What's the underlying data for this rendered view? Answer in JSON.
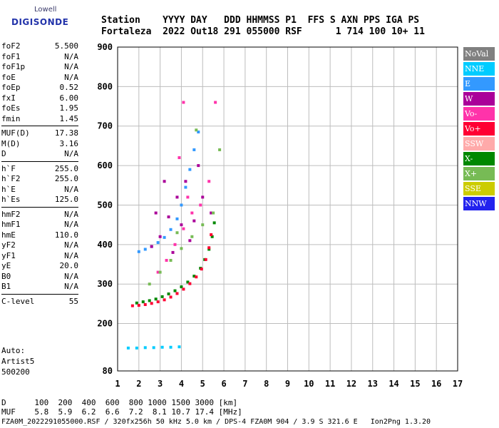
{
  "logo": {
    "line1": "Lowell",
    "line2": "DIGISONDE"
  },
  "header": {
    "row1": "Station    YYYY DAY   DDD HHMMSS P1  FFS S AXN PPS IGA PS",
    "row2": "Fortaleza  2022 Out18 291 055000 RSF      1 714 100 10+ 11"
  },
  "params": {
    "group1": [
      {
        "name": "foF2",
        "value": "5.500"
      },
      {
        "name": "foF1",
        "value": "N/A"
      },
      {
        "name": "foF1p",
        "value": "N/A"
      },
      {
        "name": "foE",
        "value": "N/A"
      },
      {
        "name": "foEp",
        "value": "0.52"
      },
      {
        "name": "fxI",
        "value": "6.00"
      },
      {
        "name": "foEs",
        "value": "1.95"
      },
      {
        "name": "fmin",
        "value": "1.45"
      }
    ],
    "group2": [
      {
        "name": "MUF(D)",
        "value": "17.38"
      },
      {
        "name": "M(D)",
        "value": "3.16"
      },
      {
        "name": "D",
        "value": "N/A"
      }
    ],
    "group3": [
      {
        "name": "h`F",
        "value": "255.0"
      },
      {
        "name": "h`F2",
        "value": "255.0"
      },
      {
        "name": "h`E",
        "value": "N/A"
      },
      {
        "name": "h`Es",
        "value": "125.0"
      }
    ],
    "group4": [
      {
        "name": "hmF2",
        "value": "N/A"
      },
      {
        "name": "hmF1",
        "value": "N/A"
      },
      {
        "name": "hmE",
        "value": "110.0"
      },
      {
        "name": "yF2",
        "value": "N/A"
      },
      {
        "name": "yF1",
        "value": "N/A"
      },
      {
        "name": "yE",
        "value": "20.0"
      },
      {
        "name": "B0",
        "value": "N/A"
      },
      {
        "name": "B1",
        "value": "N/A"
      }
    ],
    "group5": [
      {
        "name": "C-level",
        "value": "55"
      }
    ]
  },
  "auto": {
    "line1": "Auto:",
    "line2": "Artist5",
    "line3": "500200"
  },
  "legend": [
    {
      "label": "NoVal",
      "color": "#808080"
    },
    {
      "label": "NNE",
      "color": "#00ccff"
    },
    {
      "label": "E",
      "color": "#3399ff"
    },
    {
      "label": "W",
      "color": "#aa0099"
    },
    {
      "label": "Vo-",
      "color": "#ff33aa"
    },
    {
      "label": "Vo+",
      "color": "#ff0033"
    },
    {
      "label": "SSW",
      "color": "#ffaaaa"
    },
    {
      "label": "X-",
      "color": "#008800"
    },
    {
      "label": "X+",
      "color": "#77bb55"
    },
    {
      "label": "SSE",
      "color": "#cccc00"
    },
    {
      "label": "NNW",
      "color": "#2222ee"
    }
  ],
  "bottom": {
    "row1": "D      100  200  400  600  800 1000 1500 3000 [km]",
    "row2": "MUF    5.8  5.9  6.2  6.6  7.2  8.1 10.7 17.4 [MHz]",
    "row3": "FZA0M_2022291055000.RSF / 320fx256h 50 kHz 5.0 km / DPS-4 FZA0M 904 / 3.9 S 321.6 E   Ion2Png 1.3.20"
  },
  "chart_data": {
    "type": "scatter",
    "title": "",
    "xlabel": "",
    "ylabel": "",
    "xlim": [
      1,
      17
    ],
    "ylim": [
      80,
      900
    ],
    "xticks": [
      1,
      2,
      3,
      4,
      5,
      6,
      7,
      8,
      9,
      10,
      11,
      12,
      13,
      14,
      15,
      16,
      17
    ],
    "yticks": [
      80,
      200,
      300,
      400,
      500,
      600,
      700,
      800,
      900
    ],
    "grid": true,
    "series": [
      {
        "name": "X-",
        "color": "#008800",
        "points": [
          [
            1.9,
            252
          ],
          [
            2.2,
            255
          ],
          [
            2.5,
            258
          ],
          [
            2.8,
            262
          ],
          [
            3.1,
            268
          ],
          [
            3.4,
            275
          ],
          [
            3.7,
            283
          ],
          [
            4.0,
            293
          ],
          [
            4.3,
            305
          ],
          [
            4.6,
            320
          ],
          [
            4.9,
            340
          ],
          [
            5.1,
            362
          ],
          [
            5.3,
            388
          ],
          [
            5.45,
            420
          ],
          [
            5.55,
            455
          ]
        ]
      },
      {
        "name": "Vo+",
        "color": "#ff0033",
        "points": [
          [
            1.7,
            245
          ],
          [
            2.0,
            246
          ],
          [
            2.3,
            248
          ],
          [
            2.6,
            251
          ],
          [
            2.9,
            255
          ],
          [
            3.2,
            260
          ],
          [
            3.5,
            267
          ],
          [
            3.8,
            276
          ],
          [
            4.1,
            287
          ],
          [
            4.4,
            301
          ],
          [
            4.7,
            318
          ],
          [
            4.95,
            338
          ],
          [
            5.15,
            362
          ],
          [
            5.3,
            392
          ],
          [
            5.4,
            425
          ]
        ]
      },
      {
        "name": "E",
        "color": "#3399ff",
        "points": [
          [
            2.0,
            382
          ],
          [
            2.3,
            388
          ],
          [
            2.6,
            395
          ],
          [
            2.9,
            405
          ],
          [
            3.2,
            418
          ],
          [
            3.5,
            438
          ],
          [
            3.8,
            465
          ],
          [
            4.0,
            500
          ],
          [
            4.2,
            545
          ],
          [
            4.4,
            590
          ],
          [
            4.6,
            640
          ],
          [
            4.8,
            685
          ]
        ]
      },
      {
        "name": "NNE",
        "color": "#00ccff",
        "points": [
          [
            1.5,
            138
          ],
          [
            1.9,
            138
          ],
          [
            2.3,
            139
          ],
          [
            2.7,
            139
          ],
          [
            3.1,
            140
          ],
          [
            3.5,
            140
          ],
          [
            3.9,
            141
          ]
        ]
      },
      {
        "name": "W",
        "color": "#aa0099",
        "points": [
          [
            2.6,
            395
          ],
          [
            3.0,
            420
          ],
          [
            3.4,
            470
          ],
          [
            3.8,
            520
          ],
          [
            4.2,
            560
          ],
          [
            4.6,
            460
          ],
          [
            5.0,
            520
          ],
          [
            5.4,
            480
          ],
          [
            3.6,
            380
          ],
          [
            4.4,
            410
          ],
          [
            3.2,
            560
          ],
          [
            4.0,
            450
          ],
          [
            2.8,
            480
          ],
          [
            4.8,
            600
          ]
        ]
      },
      {
        "name": "Vo-",
        "color": "#ff33aa",
        "points": [
          [
            2.9,
            330
          ],
          [
            3.3,
            360
          ],
          [
            3.7,
            400
          ],
          [
            4.1,
            440
          ],
          [
            4.5,
            480
          ],
          [
            4.9,
            500
          ],
          [
            5.3,
            560
          ],
          [
            3.9,
            620
          ],
          [
            4.3,
            520
          ],
          [
            5.6,
            760
          ],
          [
            4.1,
            760
          ]
        ]
      },
      {
        "name": "X+",
        "color": "#77bb55",
        "points": [
          [
            2.5,
            300
          ],
          [
            3.0,
            330
          ],
          [
            3.5,
            360
          ],
          [
            4.0,
            390
          ],
          [
            4.5,
            420
          ],
          [
            5.0,
            450
          ],
          [
            5.5,
            480
          ],
          [
            5.8,
            640
          ],
          [
            3.8,
            430
          ],
          [
            4.7,
            690
          ]
        ]
      }
    ]
  }
}
